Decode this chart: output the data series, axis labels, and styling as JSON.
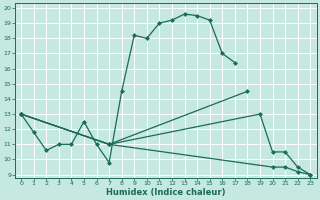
{
  "xlabel": "Humidex (Indice chaleur)",
  "bg_color": "#c5e8e0",
  "grid_color": "#ffffff",
  "line_color": "#1a6b5a",
  "xlim": [
    -0.5,
    23.5
  ],
  "ylim": [
    8.8,
    20.3
  ],
  "xticks": [
    0,
    1,
    2,
    3,
    4,
    5,
    6,
    7,
    8,
    9,
    10,
    11,
    12,
    13,
    14,
    15,
    16,
    17,
    18,
    19,
    20,
    21,
    22,
    23
  ],
  "yticks": [
    9,
    10,
    11,
    12,
    13,
    14,
    15,
    16,
    17,
    18,
    19,
    20
  ],
  "line1_x": [
    0,
    1,
    2,
    3,
    4,
    5,
    6,
    7,
    8,
    9,
    10,
    11,
    12,
    13,
    14,
    15,
    16,
    17
  ],
  "line1_y": [
    13,
    11.8,
    10.6,
    11.0,
    11.0,
    12.5,
    11.0,
    9.8,
    14.5,
    18.2,
    18.0,
    19.0,
    19.2,
    19.6,
    19.5,
    19.2,
    17.0,
    16.4
  ],
  "line2_x": [
    0,
    7,
    18
  ],
  "line2_y": [
    13,
    11.0,
    14.5
  ],
  "line3_x": [
    0,
    7,
    19,
    20,
    21,
    22,
    23
  ],
  "line3_y": [
    13,
    11.0,
    13.0,
    10.5,
    10.5,
    9.5,
    9.0
  ],
  "line4_x": [
    0,
    7,
    20,
    21,
    22,
    23
  ],
  "line4_y": [
    13,
    11.0,
    9.5,
    9.5,
    9.2,
    9.0
  ],
  "markersize": 2.5,
  "linewidth": 0.9
}
